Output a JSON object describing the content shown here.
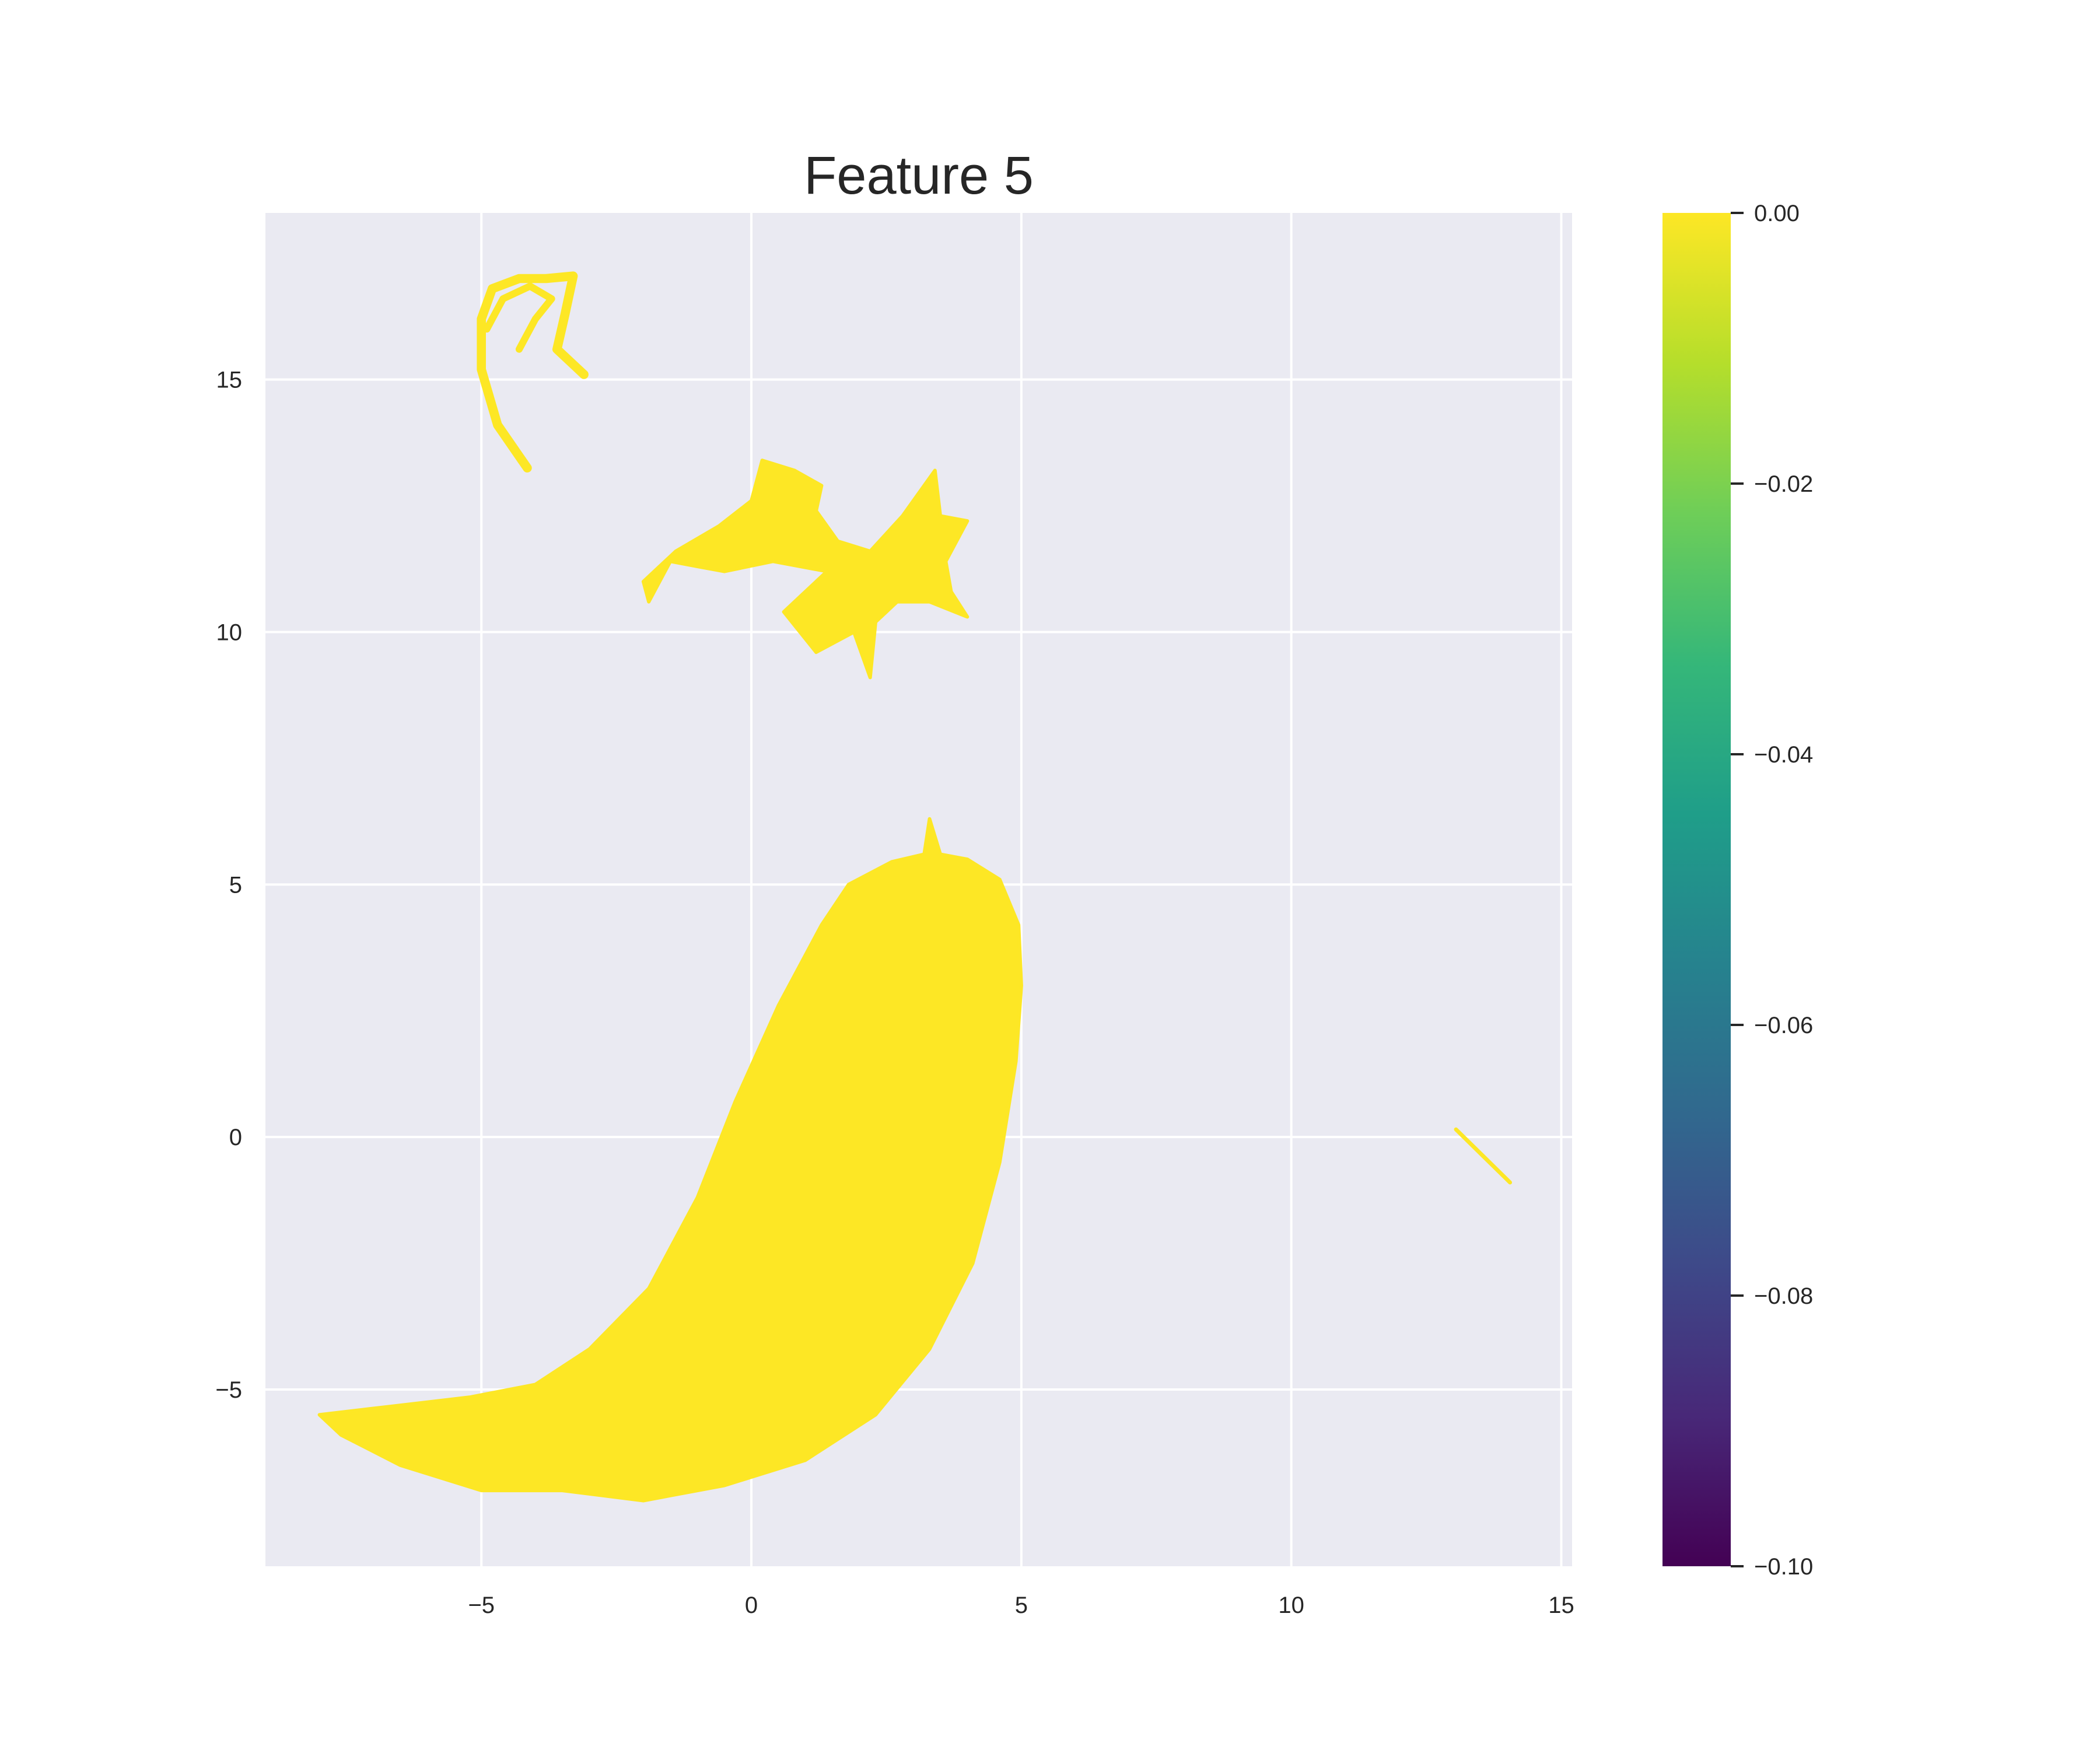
{
  "chart_data": {
    "type": "scatter",
    "title": "Feature 5",
    "xlabel": "",
    "ylabel": "",
    "xlim": [
      -9.0,
      15.2
    ],
    "ylim": [
      -8.5,
      18.3
    ],
    "xticks": [
      -5,
      0,
      5,
      10,
      15
    ],
    "yticks": [
      -5,
      0,
      5,
      10,
      15
    ],
    "xtick_labels": [
      "−5",
      "0",
      "5",
      "10",
      "15"
    ],
    "ytick_labels": [
      "−5",
      "0",
      "5",
      "10",
      "15"
    ],
    "grid": true,
    "background": "#eaeaf2",
    "grid_color": "#ffffff",
    "point_color": "#fde725",
    "colorbar": {
      "colormap": "viridis",
      "range": [
        -0.1,
        0.0
      ],
      "ticks": [
        0.0,
        -0.02,
        -0.04,
        -0.06,
        -0.08,
        -0.1
      ],
      "tick_labels": [
        "0.00",
        "−0.02",
        "−0.04",
        "−0.06",
        "−0.08",
        "−0.10"
      ],
      "stops": [
        "#440154",
        "#482878",
        "#3e4989",
        "#31688e",
        "#26828e",
        "#1f9e89",
        "#35b779",
        "#6ece58",
        "#b5de2b",
        "#fde725"
      ]
    },
    "clusters": [
      {
        "name": "main-body",
        "value": 0.0,
        "outline": [
          [
            -8.0,
            -5.5
          ],
          [
            -6.8,
            -5.35
          ],
          [
            -5.2,
            -5.15
          ],
          [
            -4.0,
            -4.9
          ],
          [
            -3.0,
            -4.2
          ],
          [
            -1.9,
            -3.0
          ],
          [
            -1.0,
            -1.2
          ],
          [
            -0.3,
            0.7
          ],
          [
            0.5,
            2.6
          ],
          [
            1.3,
            4.2
          ],
          [
            1.8,
            5.0
          ],
          [
            2.6,
            5.45
          ],
          [
            3.2,
            5.6
          ],
          [
            3.3,
            6.3
          ],
          [
            3.5,
            5.6
          ],
          [
            4.0,
            5.5
          ],
          [
            4.6,
            5.1
          ],
          [
            4.95,
            4.2
          ],
          [
            5.0,
            3.0
          ],
          [
            4.9,
            1.5
          ],
          [
            4.6,
            -0.5
          ],
          [
            4.1,
            -2.5
          ],
          [
            3.3,
            -4.2
          ],
          [
            2.3,
            -5.5
          ],
          [
            1.0,
            -6.4
          ],
          [
            -0.5,
            -6.9
          ],
          [
            -2.0,
            -7.2
          ],
          [
            -3.5,
            -7.0
          ],
          [
            -5.0,
            -7.0
          ],
          [
            -6.5,
            -6.5
          ],
          [
            -7.6,
            -5.9
          ]
        ]
      },
      {
        "name": "middle-cluster",
        "value": 0.0,
        "outline": [
          [
            -2.0,
            11.0
          ],
          [
            -1.4,
            11.6
          ],
          [
            -0.6,
            12.1
          ],
          [
            0.0,
            12.6
          ],
          [
            0.2,
            13.4
          ],
          [
            0.8,
            13.2
          ],
          [
            1.3,
            12.9
          ],
          [
            1.2,
            12.4
          ],
          [
            1.6,
            11.8
          ],
          [
            2.2,
            11.6
          ],
          [
            2.8,
            12.3
          ],
          [
            3.4,
            13.2
          ],
          [
            3.5,
            12.3
          ],
          [
            4.0,
            12.2
          ],
          [
            3.6,
            11.4
          ],
          [
            3.7,
            10.8
          ],
          [
            4.0,
            10.3
          ],
          [
            3.3,
            10.6
          ],
          [
            2.7,
            10.6
          ],
          [
            2.3,
            10.2
          ],
          [
            2.2,
            9.1
          ],
          [
            1.9,
            10.0
          ],
          [
            1.2,
            9.6
          ],
          [
            0.6,
            10.4
          ],
          [
            1.4,
            11.2
          ],
          [
            0.4,
            11.4
          ],
          [
            -0.5,
            11.2
          ],
          [
            -1.0,
            11.3
          ],
          [
            -1.5,
            11.4
          ],
          [
            -1.9,
            10.6
          ]
        ]
      }
    ],
    "curves": [
      {
        "name": "top-left-arc",
        "value": 0.0,
        "points": [
          [
            -4.15,
            13.25
          ],
          [
            -4.7,
            14.1
          ],
          [
            -5.0,
            15.2
          ],
          [
            -5.0,
            16.2
          ],
          [
            -4.8,
            16.8
          ],
          [
            -4.3,
            17.0
          ],
          [
            -3.8,
            17.0
          ],
          [
            -3.3,
            17.05
          ],
          [
            -3.45,
            16.3
          ],
          [
            -3.6,
            15.6
          ],
          [
            -3.1,
            15.1
          ]
        ],
        "width": 0.18
      },
      {
        "name": "top-left-inner-arc",
        "value": 0.0,
        "points": [
          [
            -4.9,
            16.0
          ],
          [
            -4.6,
            16.6
          ],
          [
            -4.1,
            16.85
          ],
          [
            -3.7,
            16.6
          ],
          [
            -4.0,
            16.2
          ],
          [
            -4.3,
            15.6
          ]
        ],
        "width": 0.14
      },
      {
        "name": "right-streak",
        "value": 0.0,
        "points": [
          [
            13.05,
            0.15
          ],
          [
            14.05,
            -0.9
          ]
        ],
        "width": 0.08
      }
    ]
  }
}
